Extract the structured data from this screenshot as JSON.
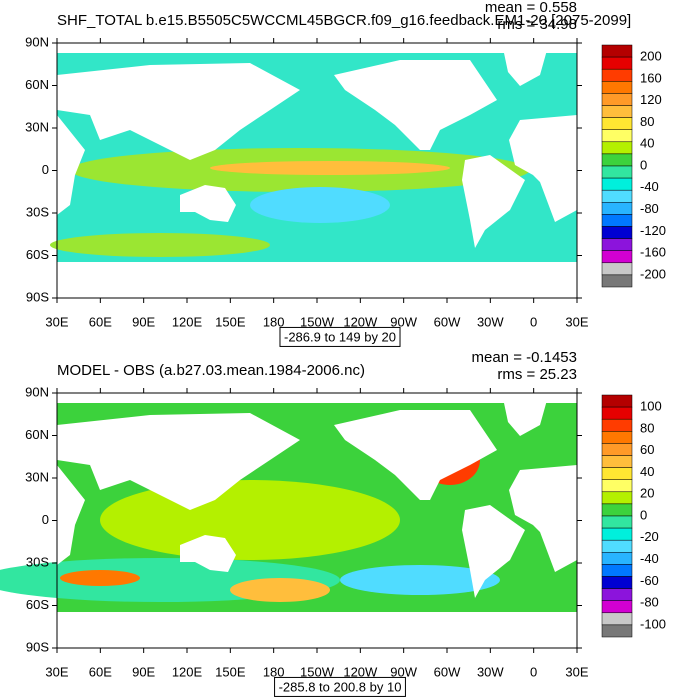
{
  "panels": [
    {
      "title": "SHF_TOTAL b.e15.B5505C5WCCML45BGCR.f09_g16.feedback.EM1-20 [2075-2099]",
      "mean": "mean = 0.558",
      "rms": "rms = 34.98",
      "lat_labels": [
        "90N",
        "60N",
        "30N",
        "0",
        "30S",
        "60S",
        "90S"
      ],
      "lon_labels": [
        "30E",
        "60E",
        "90E",
        "120E",
        "150E",
        "180",
        "150W",
        "120W",
        "90W",
        "60W",
        "30W",
        "0",
        "30E"
      ],
      "colorbar": {
        "labels": [
          200,
          160,
          120,
          80,
          40,
          0,
          -40,
          -80,
          -120,
          -160,
          -200
        ],
        "colors": [
          "#b40000",
          "#e60000",
          "#ff3c00",
          "#ff7800",
          "#ff9a28",
          "#ffbe3c",
          "#ffe632",
          "#ffff64",
          "#b4f000",
          "#3cd23c",
          "#32e6a0",
          "#00f0dc",
          "#50dcff",
          "#28b4ff",
          "#0078ff",
          "#0000d2",
          "#8c14dc",
          "#d200d2",
          "#c8c8c8",
          "#787878"
        ]
      },
      "contour_info": "-286.9 to 149 by 20"
    },
    {
      "title": "MODEL - OBS (a.b27.03.mean.1984-2006.nc)",
      "mean": "mean = -0.1453",
      "rms": "rms = 25.23",
      "lat_labels": [
        "90N",
        "60N",
        "30N",
        "0",
        "30S",
        "60S",
        "90S"
      ],
      "lon_labels": [
        "30E",
        "60E",
        "90E",
        "120E",
        "150E",
        "180",
        "150W",
        "120W",
        "90W",
        "60W",
        "30W",
        "0",
        "30E"
      ],
      "colorbar": {
        "labels": [
          100,
          80,
          60,
          40,
          20,
          0,
          -20,
          -40,
          -60,
          -80,
          -100
        ],
        "colors": [
          "#b40000",
          "#e60000",
          "#ff3c00",
          "#ff7800",
          "#ff9a28",
          "#ffbe3c",
          "#ffe632",
          "#ffff64",
          "#b4f000",
          "#3cd23c",
          "#32e6a0",
          "#00f0dc",
          "#50dcff",
          "#28b4ff",
          "#0078ff",
          "#0000d2",
          "#8c14dc",
          "#d200d2",
          "#c8c8c8",
          "#787878"
        ]
      },
      "contour_info": "-285.8 to 200.8 by 10"
    }
  ]
}
